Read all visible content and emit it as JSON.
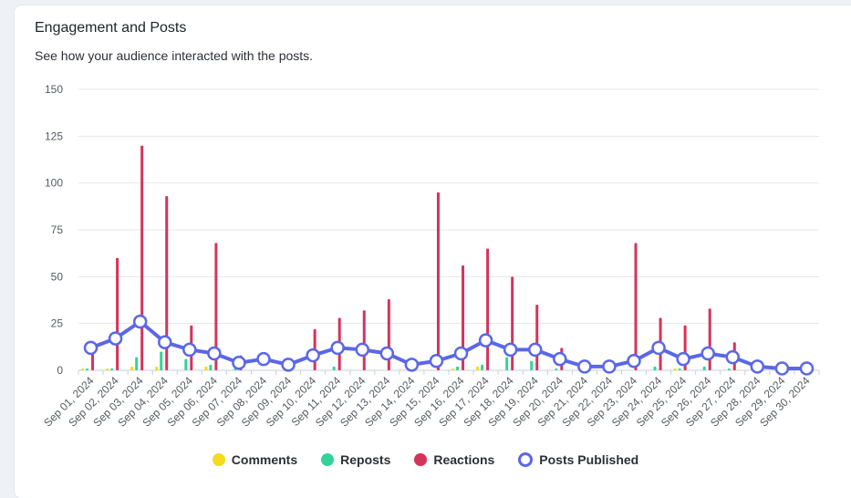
{
  "header": {
    "title": "Engagement and Posts",
    "subtitle": "See how your audience interacted with the posts."
  },
  "chart_data": {
    "type": "bar",
    "ylim": [
      0,
      150
    ],
    "yticks": [
      0,
      25,
      50,
      75,
      100,
      125,
      150
    ],
    "grid": true,
    "legend_position": "bottom",
    "categories": [
      "Sep 01, 2024",
      "Sep 02, 2024",
      "Sep 03, 2024",
      "Sep 04, 2024",
      "Sep 05, 2024",
      "Sep 06, 2024",
      "Sep 07, 2024",
      "Sep 08, 2024",
      "Sep 09, 2024",
      "Sep 10, 2024",
      "Sep 11, 2024",
      "Sep 12, 2024",
      "Sep 13, 2024",
      "Sep 14, 2024",
      "Sep 15, 2024",
      "Sep 16, 2024",
      "Sep 17, 2024",
      "Sep 18, 2024",
      "Sep 19, 2024",
      "Sep 20, 2024",
      "Sep 21, 2024",
      "Sep 22, 2024",
      "Sep 23, 2024",
      "Sep 24, 2024",
      "Sep 25, 2024",
      "Sep 26, 2024",
      "Sep 27, 2024",
      "Sep 28, 2024",
      "Sep 29, 2024",
      "Sep 30, 2024"
    ],
    "series": [
      {
        "name": "Comments",
        "type": "bar",
        "color": "#f2dc1b",
        "values": [
          1,
          1,
          2,
          2,
          0,
          2,
          0,
          0,
          0,
          0,
          0,
          0,
          0,
          0,
          0,
          1,
          2,
          0,
          0,
          0,
          0,
          0,
          0,
          0,
          1,
          0,
          0,
          0,
          0,
          0
        ]
      },
      {
        "name": "Reposts",
        "type": "bar",
        "color": "#34d399",
        "values": [
          1,
          1,
          7,
          10,
          6,
          3,
          1,
          0,
          0,
          0,
          2,
          0,
          0,
          0,
          0,
          2,
          3,
          7,
          5,
          1,
          0,
          0,
          0,
          2,
          1,
          2,
          1,
          0,
          0,
          0
        ]
      },
      {
        "name": "Reactions",
        "type": "bar",
        "color": "#d6335a",
        "values": [
          10,
          60,
          120,
          93,
          24,
          68,
          8,
          0,
          0,
          22,
          28,
          32,
          38,
          0,
          95,
          56,
          65,
          50,
          35,
          12,
          5,
          0,
          68,
          28,
          24,
          33,
          15,
          0,
          0,
          0
        ]
      },
      {
        "name": "Posts Published",
        "type": "line",
        "color": "#5b67e8",
        "values": [
          12,
          17,
          26,
          15,
          11,
          9,
          4,
          6,
          3,
          8,
          12,
          11,
          9,
          3,
          5,
          9,
          16,
          11,
          11,
          6,
          2,
          2,
          5,
          12,
          6,
          9,
          7,
          2,
          1,
          1
        ]
      }
    ]
  }
}
